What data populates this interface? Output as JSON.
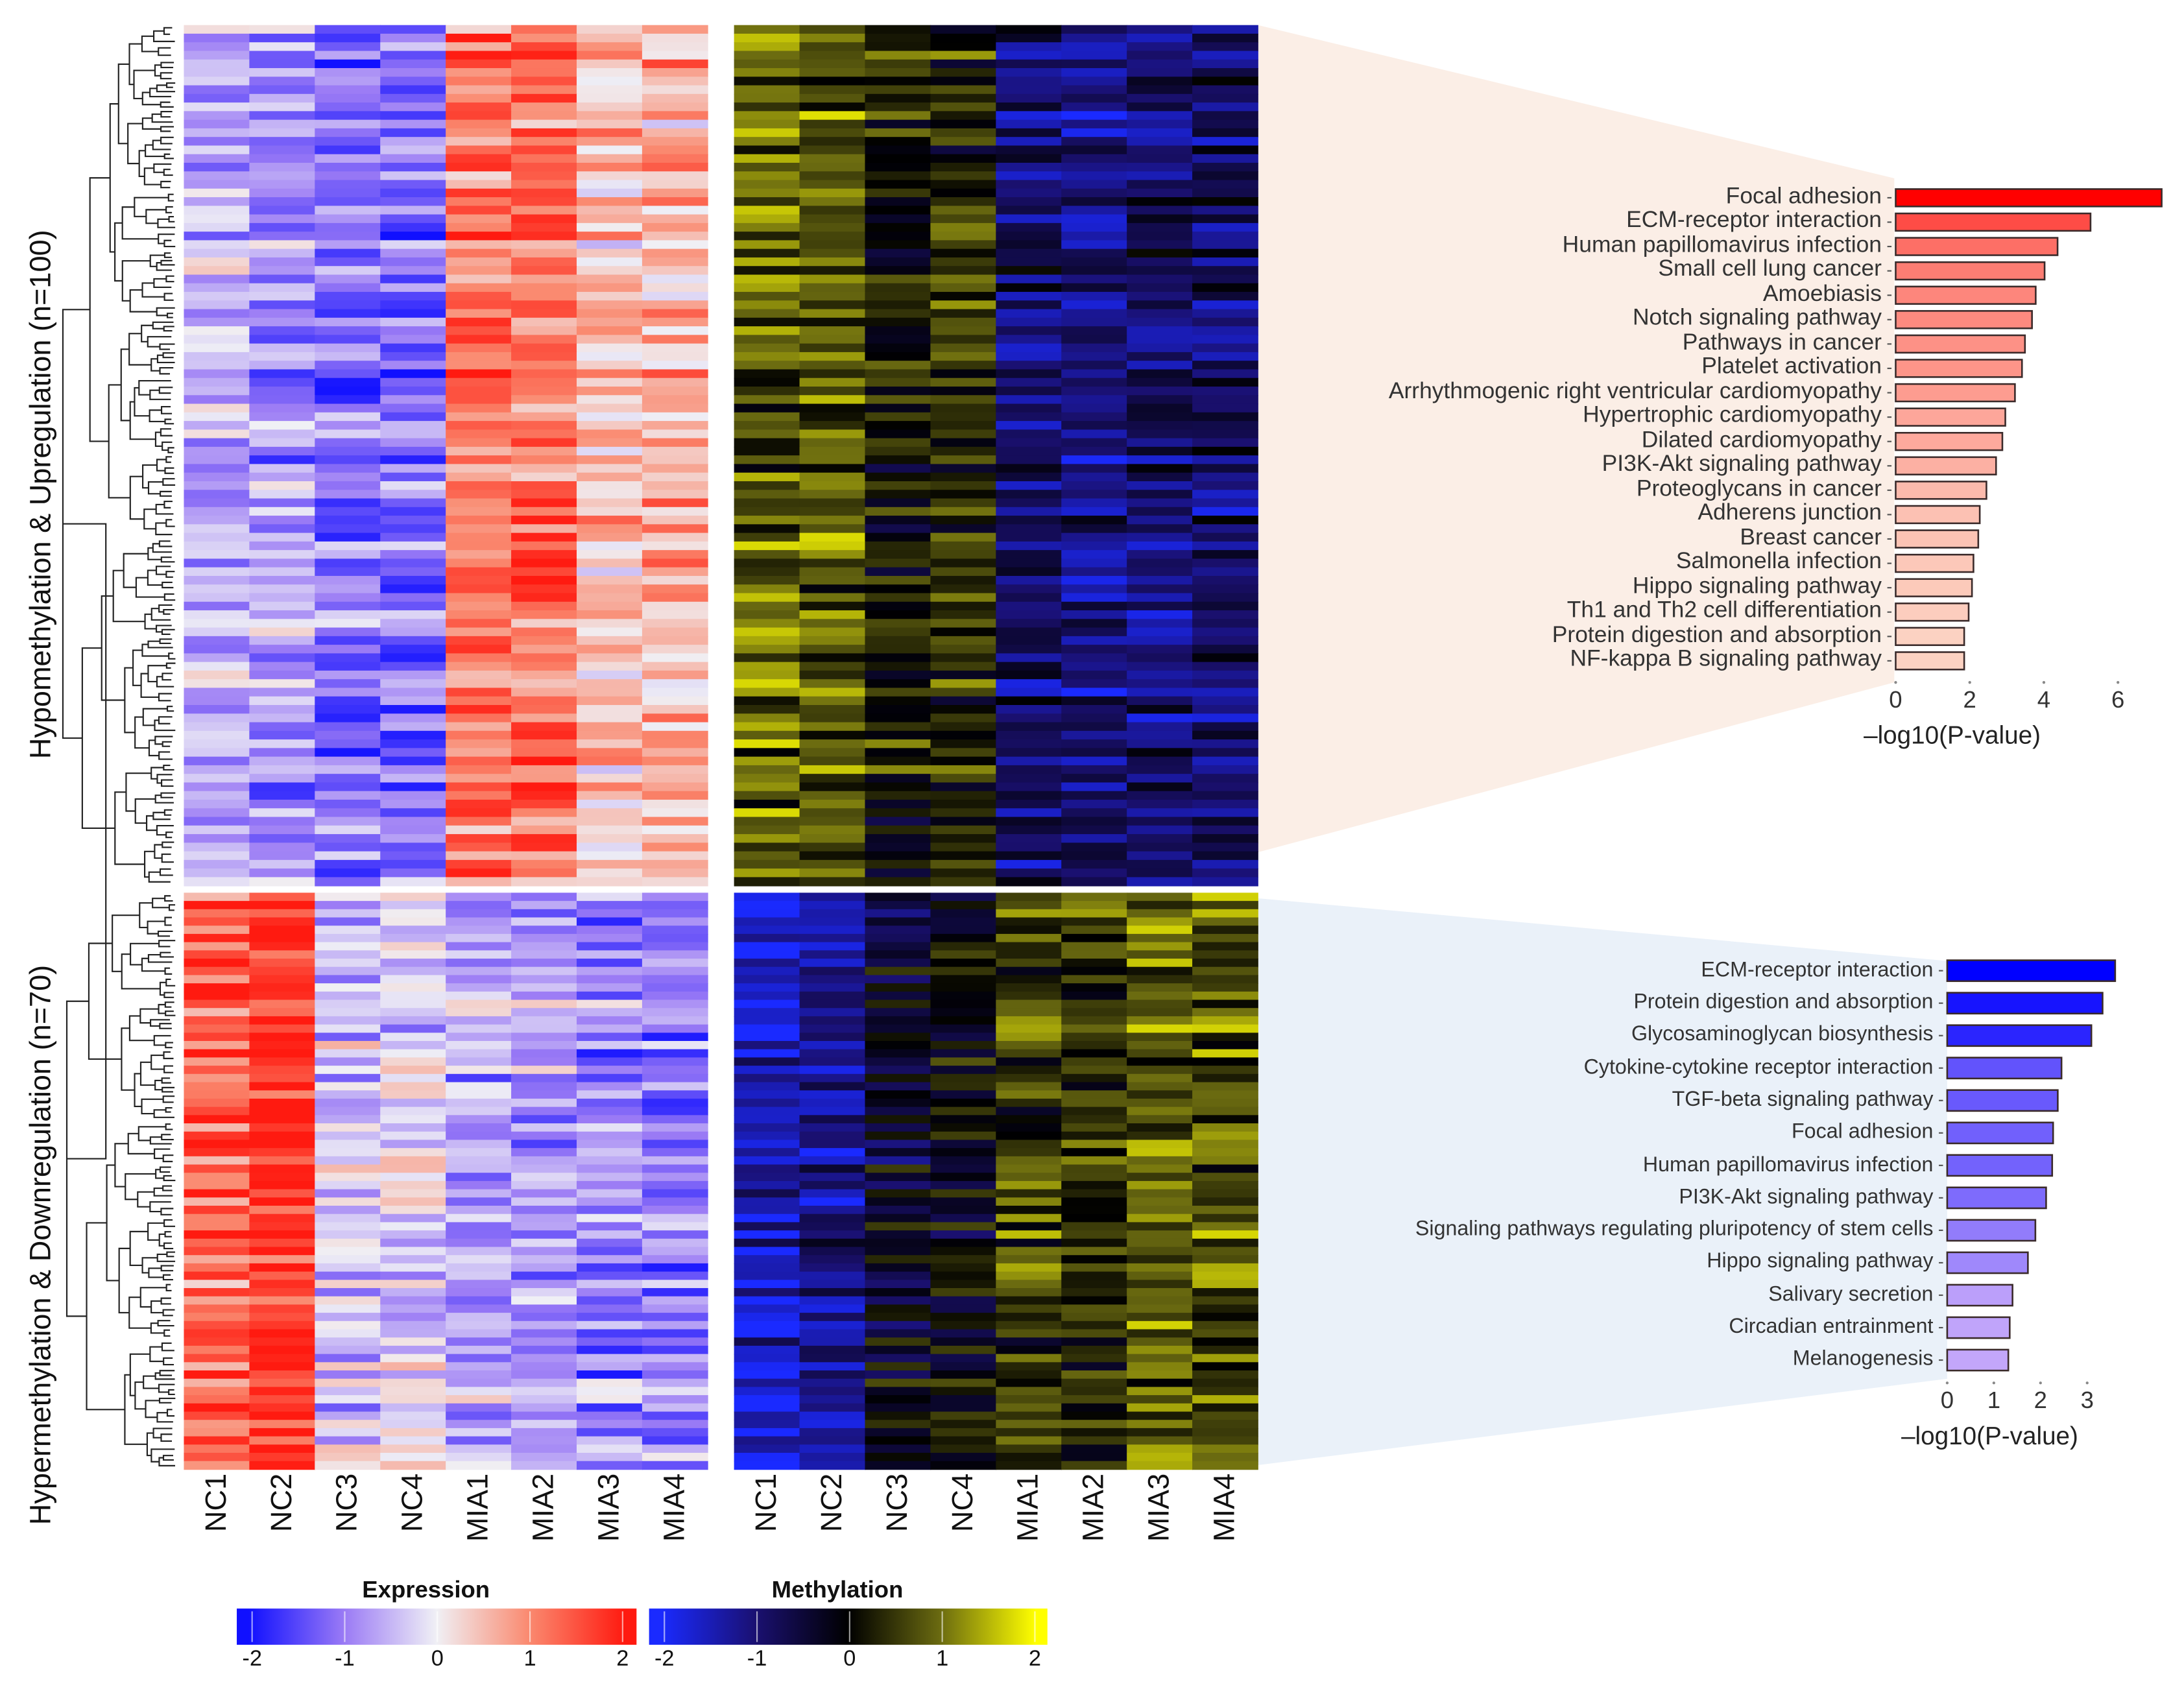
{
  "chart_data": [
    {
      "type": "heatmap",
      "title": "Expression",
      "columns": [
        "NC1",
        "NC2",
        "NC3",
        "NC4",
        "MIA1",
        "MIA2",
        "MIA3",
        "MIA4"
      ],
      "scale_range": [
        -2,
        2
      ],
      "scale_ticks": [
        "-2",
        "-1",
        "0",
        "1",
        "2"
      ],
      "blocks": [
        {
          "label": "Hypomethylation & Upregulation (n=100)",
          "rows": 100,
          "column_means": [
            -0.6,
            -0.8,
            -1.1,
            -1.1,
            1.2,
            1.2,
            0.5,
            0.6
          ]
        },
        {
          "label": "Hypermethylation & Downregulation (n=70)",
          "rows": 70,
          "column_means": [
            1.3,
            1.7,
            -0.4,
            -0.3,
            -0.7,
            -0.7,
            -0.9,
            -0.9
          ]
        }
      ],
      "colors": {
        "low": "#1010ff",
        "midlow": "#9b7bf5",
        "mid": "#f0f0f5",
        "midhigh": "#fa8a70",
        "high": "#ff1a10"
      }
    },
    {
      "type": "heatmap",
      "title": "Methylation",
      "columns": [
        "NC1",
        "NC2",
        "NC3",
        "NC4",
        "MIA1",
        "MIA2",
        "MIA3",
        "MIA4"
      ],
      "scale_range": [
        -2,
        2
      ],
      "scale_ticks": [
        "-2",
        "-1",
        "0",
        "1",
        "2"
      ],
      "blocks": [
        {
          "rows": 100,
          "column_means": [
            0.9,
            0.8,
            0.2,
            0.4,
            -0.9,
            -1.1,
            -0.9,
            -0.9
          ]
        },
        {
          "rows": 70,
          "column_means": [
            -1.6,
            -1.3,
            -0.3,
            -0.1,
            0.6,
            0.4,
            0.9,
            0.8
          ]
        }
      ],
      "colors": {
        "low": "#1a2aff",
        "midlow": "#1a1070",
        "mid": "#000000",
        "midhigh": "#6a6a10",
        "high": "#ffff00"
      }
    },
    {
      "type": "bar",
      "orientation": "horizontal",
      "xlabel": "–log10(P-value)",
      "xlim": [
        0,
        7.2
      ],
      "xticks": [
        "0",
        "2",
        "4",
        "6"
      ],
      "categories": [
        "Focal adhesion",
        "ECM-receptor interaction",
        "Human papillomavirus infection",
        "Small cell lung cancer",
        "Amoebiasis",
        "Notch signaling pathway",
        "Pathways in cancer",
        "Platelet activation",
        "Arrhythmogenic right ventricular cardiomyopathy",
        "Hypertrophic cardiomyopathy",
        "Dilated cardiomyopathy",
        "PI3K-Akt signaling pathway",
        "Proteoglycans in cancer",
        "Adherens junction",
        "Breast cancer",
        "Salmonella infection",
        "Hippo signaling pathway",
        "Th1 and Th2 cell differentiation",
        "Protein digestion and absorption",
        "NF-kappa B signaling pathway"
      ],
      "values": [
        7.18,
        5.26,
        4.37,
        4.02,
        3.78,
        3.68,
        3.49,
        3.41,
        3.22,
        2.96,
        2.88,
        2.71,
        2.45,
        2.27,
        2.23,
        2.1,
        2.06,
        1.97,
        1.85,
        1.85
      ],
      "color_high": "#ff0000",
      "color_low": "#fcd2c2"
    },
    {
      "type": "bar",
      "orientation": "horizontal",
      "xlabel": "–log10(P-value)",
      "xlim": [
        0,
        3.7
      ],
      "xticks": [
        "0",
        "1",
        "2",
        "3"
      ],
      "categories": [
        "ECM-receptor interaction",
        "Protein digestion and absorption",
        "Glycosaminoglycan biosynthesis",
        "Cytokine-cytokine receptor interaction",
        "TGF-beta signaling pathway",
        "Focal adhesion",
        "Human papillomavirus infection",
        "PI3K-Akt signaling pathway",
        "Signaling pathways regulating pluripotency of stem cells",
        "Hippo signaling pathway",
        "Salivary secretion",
        "Circadian entrainment",
        "Melanogenesis"
      ],
      "values": [
        3.6,
        3.33,
        3.09,
        2.45,
        2.37,
        2.27,
        2.25,
        2.12,
        1.89,
        1.73,
        1.4,
        1.34,
        1.31
      ],
      "color_high": "#0000ff",
      "color_low": "#c3a6fa"
    }
  ]
}
